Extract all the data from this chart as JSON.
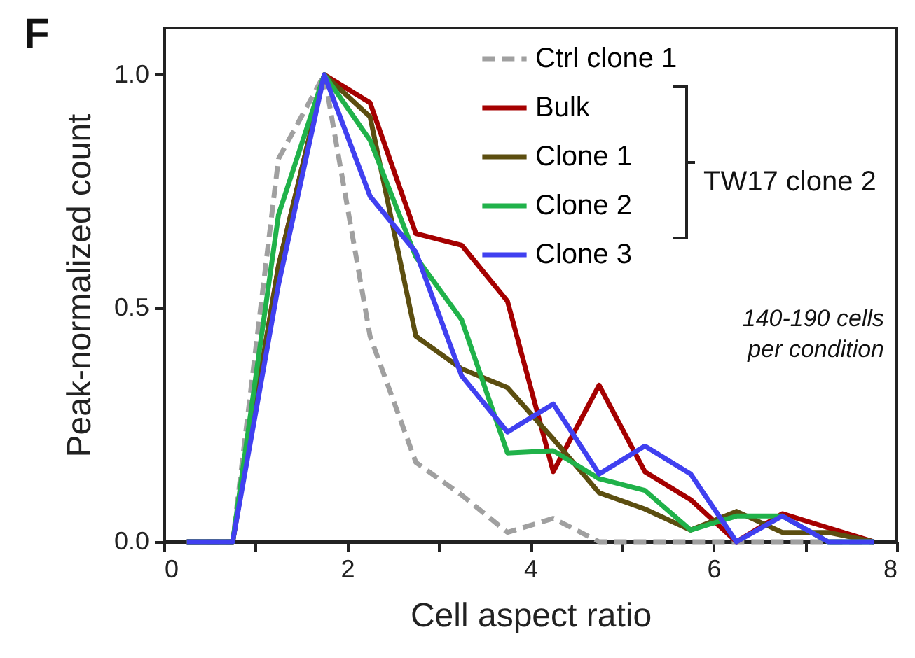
{
  "chart_data": {
    "type": "line",
    "xlabel": "Cell aspect ratio",
    "ylabel": "Peak-normalized count",
    "annotations": [
      "F",
      "TW17 clone 2",
      "140-190 cells\nper condition"
    ],
    "x": [
      0.25,
      0.75,
      1.25,
      1.75,
      2.25,
      2.75,
      3.25,
      3.75,
      4.25,
      4.75,
      5.25,
      5.75,
      6.25,
      6.75,
      7.25,
      7.75
    ],
    "series": [
      {
        "name": "Ctrl clone 1",
        "color": "#a0a0a0",
        "line_style": "dashed",
        "values": [
          0,
          0,
          0.82,
          1.0,
          0.44,
          0.17,
          0.1,
          0.02,
          0.05,
          0,
          0,
          0,
          0,
          0,
          0,
          0
        ]
      },
      {
        "name": "Bulk",
        "color": "#a50000",
        "line_style": "solid",
        "values": [
          0,
          0,
          0.59,
          1.0,
          0.94,
          0.66,
          0.635,
          0.515,
          0.15,
          0.335,
          0.15,
          0.09,
          0,
          0.06,
          0.03,
          0
        ]
      },
      {
        "name": "Clone 1",
        "color": "#5c4e10",
        "line_style": "solid",
        "values": [
          0,
          0,
          0.59,
          1.0,
          0.91,
          0.44,
          0.37,
          0.33,
          0.22,
          0.105,
          0.07,
          0.025,
          0.065,
          0.02,
          0.02,
          0
        ]
      },
      {
        "name": "Clone 2",
        "color": "#20b24a",
        "line_style": "solid",
        "values": [
          0,
          0,
          0.7,
          1.0,
          0.86,
          0.61,
          0.475,
          0.19,
          0.195,
          0.135,
          0.11,
          0.025,
          0.055,
          0.055,
          0,
          0
        ]
      },
      {
        "name": "Clone 3",
        "color": "#4040f0",
        "line_style": "solid",
        "values": [
          0,
          0,
          0.55,
          1.0,
          0.74,
          0.62,
          0.355,
          0.235,
          0.295,
          0.145,
          0.205,
          0.145,
          0,
          0.055,
          0,
          0
        ]
      }
    ],
    "xlim": [
      0,
      8
    ],
    "xticks": [
      0,
      {
        "value": 1,
        "label": null
      },
      2,
      {
        "value": 3,
        "label": null
      },
      4,
      {
        "value": 5,
        "label": null
      },
      6,
      {
        "value": 7,
        "label": null
      },
      8
    ],
    "ylim": [
      0,
      1.1
    ],
    "yticks": [
      {
        "value": 0,
        "label": "0.0"
      },
      {
        "value": 0.5,
        "label": "0.5"
      },
      {
        "value": 1,
        "label": "1.0"
      }
    ],
    "legend": "top right",
    "grid": false
  }
}
